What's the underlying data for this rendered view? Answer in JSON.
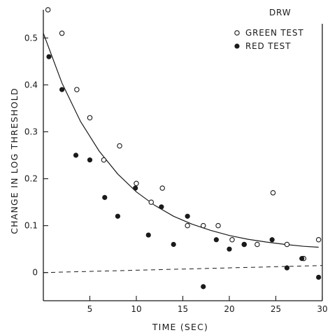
{
  "chart_data": {
    "type": "scatter",
    "title": "",
    "corner_label": "DRW",
    "xlabel": "TIME (SEC)",
    "ylabel": "CHANGE IN LOG THRESHOLD",
    "xlim": [
      0,
      30
    ],
    "ylim": [
      -0.06,
      0.56
    ],
    "xticks": [
      5,
      10,
      15,
      20,
      25,
      30
    ],
    "yticks": [
      0,
      0.1,
      0.2,
      0.3,
      0.4,
      0.5
    ],
    "grid": false,
    "legend_position": "top-right",
    "series": [
      {
        "name": "GREEN TEST",
        "marker": "open-circle",
        "x": [
          0.5,
          2.0,
          3.6,
          5.0,
          6.5,
          8.2,
          10.0,
          11.6,
          12.8,
          15.5,
          17.2,
          18.8,
          20.3,
          21.6,
          23.0,
          24.7,
          26.2,
          28.0,
          29.6
        ],
        "y": [
          0.56,
          0.51,
          0.39,
          0.33,
          0.24,
          0.27,
          0.19,
          0.15,
          0.18,
          0.1,
          0.1,
          0.1,
          0.07,
          0.06,
          0.06,
          0.17,
          0.06,
          0.03,
          0.07
        ]
      },
      {
        "name": "RED TEST",
        "marker": "filled-circle",
        "x": [
          0.6,
          2.0,
          3.5,
          5.0,
          6.6,
          8.0,
          9.9,
          11.3,
          12.7,
          14.0,
          15.5,
          17.2,
          18.6,
          20.0,
          21.6,
          24.6,
          26.2,
          27.8,
          29.6
        ],
        "y": [
          0.46,
          0.39,
          0.25,
          0.24,
          0.16,
          0.12,
          0.18,
          0.08,
          0.14,
          0.06,
          0.12,
          -0.03,
          0.07,
          0.05,
          0.06,
          0.07,
          0.01,
          0.03,
          -0.01
        ]
      }
    ],
    "fitted_curve": {
      "description_hidden": true,
      "form": "exponential_decay",
      "x": [
        0,
        2,
        4,
        6,
        8,
        10,
        12,
        14,
        16,
        18,
        20,
        22,
        24,
        26,
        28,
        29.6
      ],
      "y": [
        0.51,
        0.404,
        0.322,
        0.259,
        0.21,
        0.172,
        0.143,
        0.12,
        0.103,
        0.09,
        0.079,
        0.071,
        0.065,
        0.06,
        0.056,
        0.054
      ]
    },
    "baseline": {
      "style": "dashed",
      "x": [
        0,
        30
      ],
      "y": [
        0.0,
        0.015
      ]
    }
  }
}
